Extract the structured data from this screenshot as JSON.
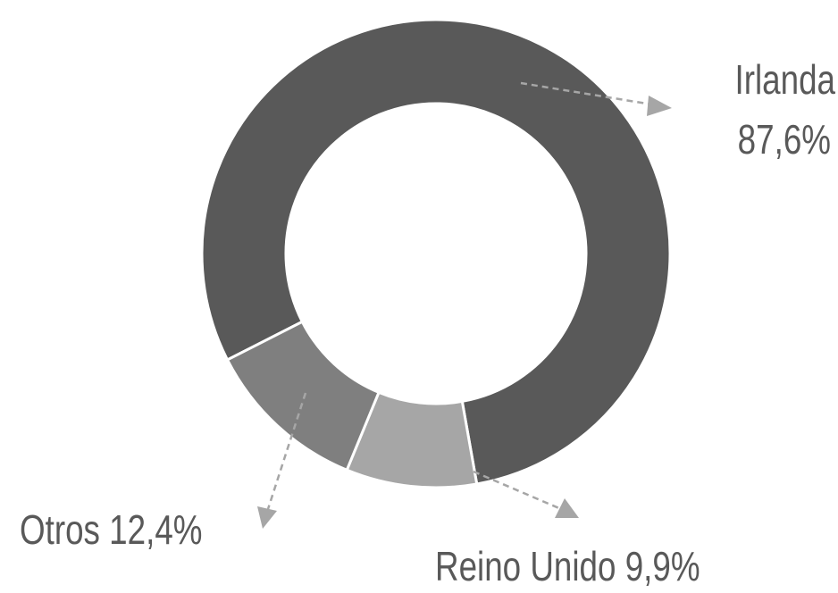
{
  "chart_data": {
    "type": "donut",
    "categories": [
      "Irlanda",
      "Reino Unido",
      "Otros"
    ],
    "values": [
      87.6,
      9.9,
      12.4
    ],
    "value_labels": [
      "87,6%",
      "9,9%",
      "12,4%"
    ],
    "colors": [
      "#595959",
      "#a6a6a6",
      "#7f7f7f"
    ]
  }
}
